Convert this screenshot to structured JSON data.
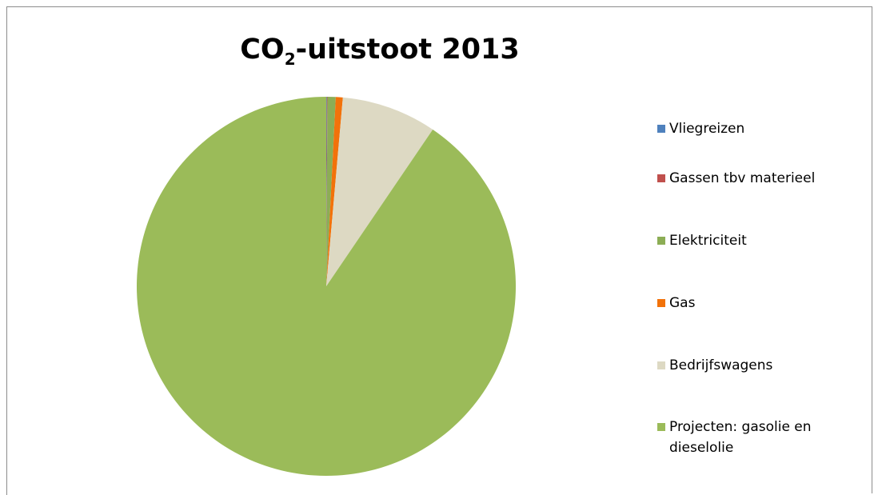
{
  "title": {
    "main": "CO",
    "sub": "2",
    "rest": "-uitstoot 2013"
  },
  "chart_data": {
    "type": "pie",
    "title": "CO2-uitstoot 2013",
    "start_angle_deg": 0,
    "direction": "clockwise",
    "legend_position": "right",
    "slices": [
      {
        "label": "Vliegreizen",
        "value": 0.05,
        "color": "#4f81bd"
      },
      {
        "label": "Gassen tbv materieel",
        "value": 0.05,
        "color": "#c0504d"
      },
      {
        "label": "Elektriciteit",
        "value": 0.7,
        "color": "#8cad55"
      },
      {
        "label": "Gas",
        "value": 0.6,
        "color": "#f2720a"
      },
      {
        "label": "Bedrijfswagens",
        "value": 8.1,
        "color": "#ddd9c3"
      },
      {
        "label": "Projecten: gasolie en dieselolie",
        "value": 90.5,
        "color": "#9bbb59"
      }
    ]
  }
}
